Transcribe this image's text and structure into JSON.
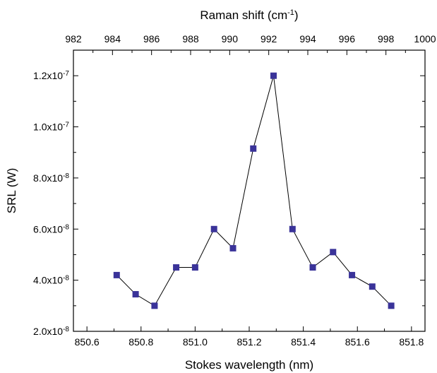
{
  "chart_data": {
    "type": "line",
    "xlabel": "Stokes wavelength (nm)",
    "top_xlabel": "Raman shift (cm",
    "top_xlabel_sup": "-1",
    "top_xlabel_end": ")",
    "ylabel": "SRL (W)",
    "xlim": [
      850.55,
      851.85
    ],
    "ylim": [
      2e-08,
      1.3e-07
    ],
    "top_xlim": [
      982,
      1000
    ],
    "x_ticks": [
      {
        "value": 850.6,
        "label": "850.6"
      },
      {
        "value": 850.8,
        "label": "850.8"
      },
      {
        "value": 851.0,
        "label": "851.0"
      },
      {
        "value": 851.2,
        "label": "851.2"
      },
      {
        "value": 851.4,
        "label": "851.4"
      },
      {
        "value": 851.6,
        "label": "851.6"
      },
      {
        "value": 851.8,
        "label": "851.8"
      }
    ],
    "top_ticks": [
      {
        "value": 982,
        "label": "982"
      },
      {
        "value": 984,
        "label": "984"
      },
      {
        "value": 986,
        "label": "986"
      },
      {
        "value": 988,
        "label": "988"
      },
      {
        "value": 990,
        "label": "990"
      },
      {
        "value": 992,
        "label": "992"
      },
      {
        "value": 994,
        "label": "994"
      },
      {
        "value": 996,
        "label": "996"
      },
      {
        "value": 998,
        "label": "998"
      },
      {
        "value": 1000,
        "label": "1000"
      }
    ],
    "y_ticks": [
      {
        "value": 2e-08,
        "mantissa": "2.0x10",
        "exp": "-8"
      },
      {
        "value": 4e-08,
        "mantissa": "4.0x10",
        "exp": "-8"
      },
      {
        "value": 6e-08,
        "mantissa": "6.0x10",
        "exp": "-8"
      },
      {
        "value": 8e-08,
        "mantissa": "8.0x10",
        "exp": "-8"
      },
      {
        "value": 1e-07,
        "mantissa": "1.0x10",
        "exp": "-7"
      },
      {
        "value": 1.2e-07,
        "mantissa": "1.2x10",
        "exp": "-7"
      }
    ],
    "series": [
      {
        "marker": "square",
        "marker_color": "#3a3399",
        "line_color": "#000000",
        "x": [
          850.71,
          850.78,
          850.85,
          850.93,
          851.0,
          851.07,
          851.14,
          851.215,
          851.29,
          851.36,
          851.435,
          851.51,
          851.58,
          851.655,
          851.725
        ],
        "y": [
          4.2e-08,
          3.45e-08,
          3e-08,
          4.5e-08,
          4.5e-08,
          6e-08,
          5.25e-08,
          9.15e-08,
          1.2e-07,
          6e-08,
          4.5e-08,
          5.1e-08,
          4.2e-08,
          3.75e-08,
          3e-08
        ]
      }
    ],
    "grid": false,
    "legend": "none"
  }
}
